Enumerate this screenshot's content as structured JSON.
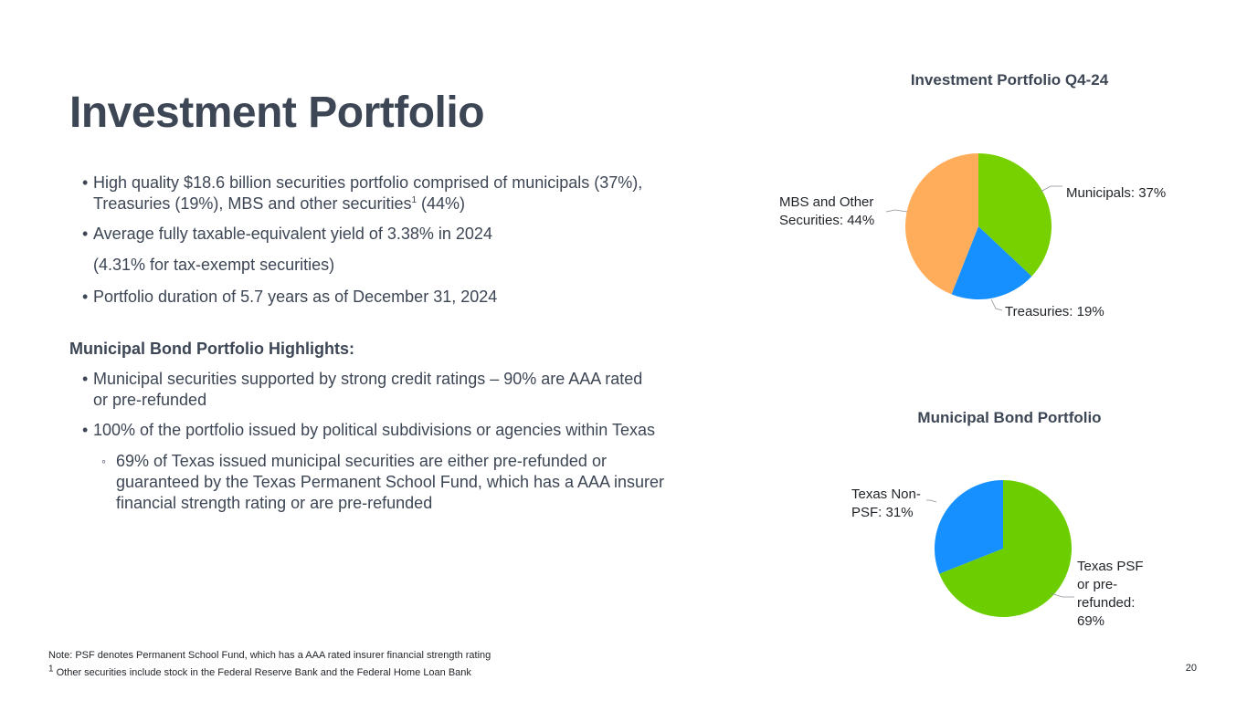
{
  "page": {
    "title": "Investment Portfolio",
    "page_number": "20"
  },
  "bullets": {
    "b1_line1": "High quality $18.6 billion securities portfolio comprised of municipals (37%),",
    "b1_line2": "Treasuries (19%), MBS and other securities",
    "b1_sup": "1",
    "b1_line2_tail": " (44%)",
    "b2_line1": "Average fully taxable-equivalent yield of 3.38% in 2024",
    "b2_line2": "(4.31% for tax-exempt securities)",
    "b3": "Portfolio duration of 5.7 years as of December 31, 2024"
  },
  "municipal_highlights": {
    "heading": "Municipal Bond Portfolio Highlights:",
    "b1_line1": "Municipal securities supported by strong credit ratings – 90% are AAA rated",
    "b1_line2": "or pre-refunded",
    "b2": "100% of the portfolio issued by political subdivisions or agencies within Texas",
    "sub_line1": "69% of Texas issued municipal securities are either pre-refunded or",
    "sub_line2": "guaranteed by the Texas Permanent School Fund, which has a AAA insurer",
    "sub_line3": "financial strength rating or are pre-refunded"
  },
  "footnotes": {
    "note": "Note: PSF denotes Permanent School Fund, which has a AAA rated insurer financial strength rating",
    "fn1_sup": "1",
    "fn1": " Other securities include stock in the Federal Reserve Bank and the Federal Home Loan Bank"
  },
  "colors": {
    "municipals": "#77d100",
    "treasuries": "#1690ff",
    "mbs_other": "#ffad5a",
    "texas_psf": "#6cce00",
    "texas_non_psf": "#1690ff",
    "text": "#3d4654"
  },
  "chart_data": [
    {
      "type": "pie",
      "title": "Investment Portfolio Q4-24",
      "slices": [
        {
          "name": "Municipals",
          "value": 37,
          "label_line1": "Municipals: 37%",
          "label_line2": ""
        },
        {
          "name": "Treasuries",
          "value": 19,
          "label_line1": "Treasuries: 19%",
          "label_line2": ""
        },
        {
          "name": "MBS and Other Securities",
          "value": 44,
          "label_line1": "MBS and Other",
          "label_line2": "Securities: 44%"
        }
      ]
    },
    {
      "type": "pie",
      "title": "Municipal Bond Portfolio",
      "slices": [
        {
          "name": "Texas PSF or pre-refunded",
          "value": 69,
          "label_lines": [
            "Texas PSF",
            "or pre-",
            "refunded:",
            "69%"
          ]
        },
        {
          "name": "Texas Non-PSF",
          "value": 31,
          "label_lines": [
            "Texas Non-",
            "PSF: 31%"
          ]
        }
      ]
    }
  ]
}
